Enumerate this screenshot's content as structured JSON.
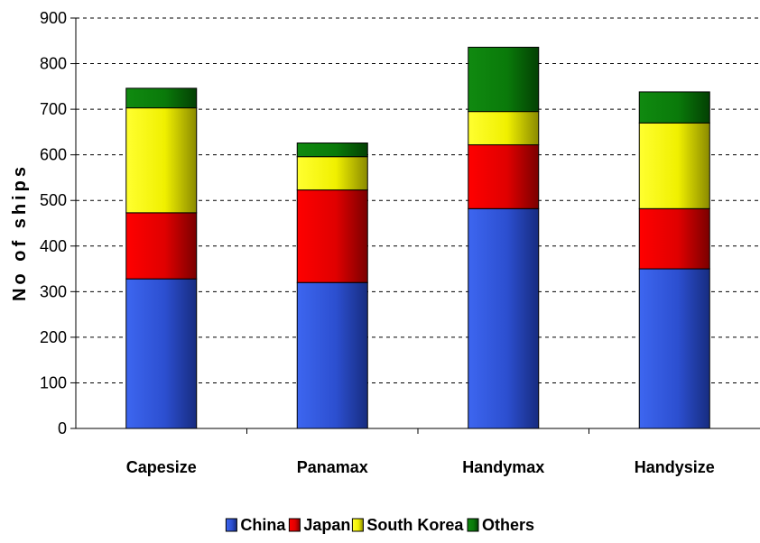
{
  "chart_data": {
    "type": "bar",
    "stacked": true,
    "categories": [
      "Capesize",
      "Panamax",
      "Handymax",
      "Handysize"
    ],
    "series": [
      {
        "name": "China",
        "color": "#2f56d6",
        "values": [
          328,
          320,
          482,
          350
        ]
      },
      {
        "name": "Japan",
        "color": "#e00000",
        "values": [
          145,
          203,
          140,
          132
        ]
      },
      {
        "name": "South Korea",
        "color": "#f0f000",
        "values": [
          230,
          73,
          73,
          188
        ]
      },
      {
        "name": "Others",
        "color": "#0a7a0a",
        "values": [
          43,
          30,
          141,
          68
        ]
      }
    ],
    "ylabel": "No of ships",
    "xlabel": "",
    "title": "",
    "ylim": [
      0,
      900
    ],
    "yticks": [
      "0",
      "100",
      "200",
      "300",
      "400",
      "500",
      "600",
      "700",
      "800",
      "900"
    ],
    "grid": "horizontal dashed",
    "legend_position": "bottom"
  }
}
